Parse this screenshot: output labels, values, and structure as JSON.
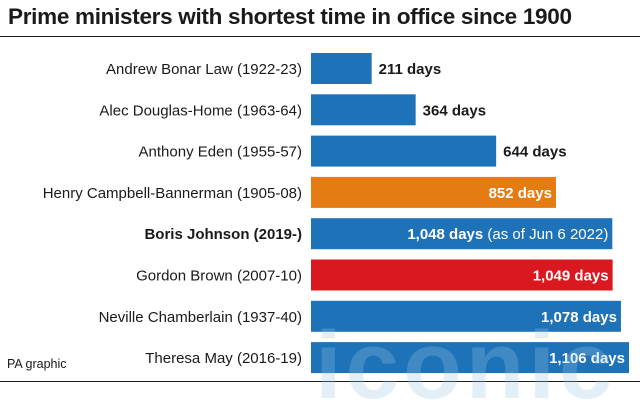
{
  "title": "Prime ministers with shortest time in office since 1900",
  "source": "PA graphic",
  "watermark_text": "iconic",
  "colors": {
    "blue": "#1e72b8",
    "orange": "#e57b13",
    "red": "#d9191f",
    "text": "#1a1a1a",
    "white": "#ffffff"
  },
  "chart_data": {
    "type": "bar",
    "orientation": "horizontal",
    "categories": [
      "Andrew Bonar Law (1922-23)",
      "Alec Douglas-Home (1963-64)",
      "Anthony Eden (1955-57)",
      "Henry Campbell-Bannerman (1905-08)",
      "Boris Johnson (2019-)",
      "Gordon Brown (2007-10)",
      "Neville Chamberlain (1937-40)",
      "Theresa May (2016-19)"
    ],
    "values": [
      211,
      364,
      644,
      852,
      1048,
      1049,
      1078,
      1106
    ],
    "value_labels": [
      "211 days",
      "364 days",
      "644 days",
      "852 days",
      "1,048 days",
      "1,049 days",
      "1,078 days",
      "1,106 days"
    ],
    "value_notes": [
      "",
      "",
      "",
      "",
      "(as of Jun 6 2022)",
      "",
      "",
      ""
    ],
    "bar_colors": [
      "#1e72b8",
      "#1e72b8",
      "#1e72b8",
      "#e57b13",
      "#1e72b8",
      "#d9191f",
      "#1e72b8",
      "#1e72b8"
    ],
    "bold_category_index": 4,
    "xlim": [
      0,
      1106
    ],
    "title": "Prime ministers with shortest time in office since 1900",
    "xlabel": "",
    "ylabel": "",
    "grid": false,
    "legend": "none"
  }
}
